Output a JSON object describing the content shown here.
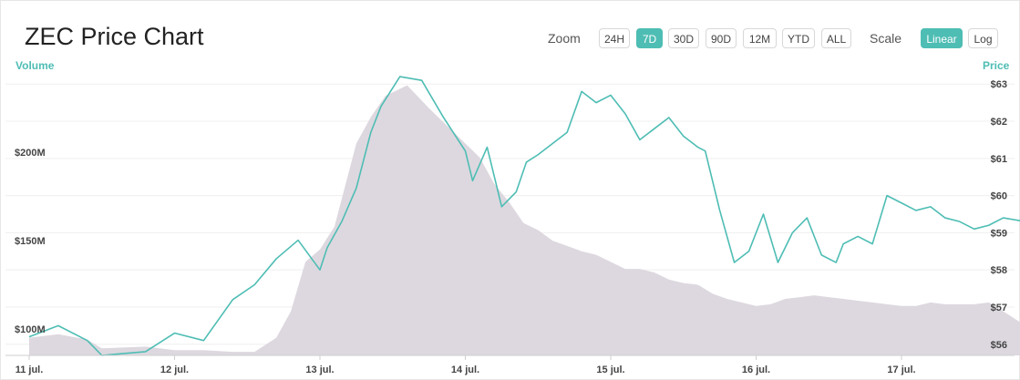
{
  "title": "ZEC Price Chart",
  "zoom": {
    "label": "Zoom",
    "options": [
      "24H",
      "7D",
      "30D",
      "90D",
      "12M",
      "YTD",
      "ALL"
    ],
    "selected": "7D"
  },
  "scale": {
    "label": "Scale",
    "options": [
      "Linear",
      "Log"
    ],
    "selected": "Linear"
  },
  "colors": {
    "price_line": "#4ebdb4",
    "volume_area": "#ddd8df",
    "accent": "#4ebdb4"
  },
  "chart_data": {
    "type": "line",
    "x_labels": [
      "11 jul.",
      "12 jul.",
      "13 jul.",
      "14 jul.",
      "15 jul.",
      "16 jul.",
      "17 jul."
    ],
    "left_axis": {
      "title": "Volume",
      "ticks": [
        "$200M",
        "$150M",
        "$100M"
      ],
      "tick_values": [
        200,
        150,
        100
      ],
      "unit": "M USD"
    },
    "right_axis": {
      "title": "Price",
      "ticks": [
        "$63",
        "$62",
        "$61",
        "$60",
        "$59",
        "$58",
        "$57",
        "$56"
      ],
      "tick_values": [
        63,
        62,
        61,
        60,
        59,
        58,
        57,
        56
      ],
      "unit": "USD"
    },
    "ylim_price": [
      55.7,
      63.3
    ],
    "ylim_volume": [
      85,
      245
    ],
    "grid": "horizontal",
    "series": [
      {
        "name": "Price",
        "x": [
          0.0,
          0.2,
          0.4,
          0.5,
          0.65,
          0.8,
          1.0,
          1.2,
          1.4,
          1.55,
          1.7,
          1.85,
          2.0,
          2.05,
          2.15,
          2.25,
          2.35,
          2.42,
          2.55,
          2.7,
          2.85,
          3.0,
          3.05,
          3.15,
          3.25,
          3.35,
          3.42,
          3.5,
          3.6,
          3.7,
          3.8,
          3.9,
          4.0,
          4.1,
          4.2,
          4.3,
          4.4,
          4.5,
          4.6,
          4.65,
          4.75,
          4.85,
          4.95,
          5.05,
          5.15,
          5.25,
          5.35,
          5.45,
          5.55,
          5.6,
          5.7,
          5.8,
          5.9,
          6.0,
          6.1,
          6.2,
          6.3,
          6.4,
          6.5,
          6.6,
          6.7,
          6.85
        ],
        "values": [
          56.2,
          56.5,
          56.1,
          55.7,
          55.75,
          55.8,
          56.3,
          56.1,
          57.2,
          57.6,
          58.3,
          58.8,
          58.0,
          58.6,
          59.3,
          60.2,
          61.7,
          62.4,
          63.2,
          63.1,
          62.1,
          61.2,
          60.4,
          61.3,
          59.7,
          60.1,
          60.9,
          61.1,
          61.4,
          61.7,
          62.8,
          62.5,
          62.7,
          62.2,
          61.5,
          61.8,
          62.1,
          61.6,
          61.3,
          61.2,
          59.6,
          58.2,
          58.5,
          59.5,
          58.2,
          59.0,
          59.4,
          58.4,
          58.2,
          58.7,
          58.9,
          58.7,
          60.0,
          59.8,
          59.6,
          59.7,
          59.4,
          59.3,
          59.1,
          59.2,
          59.4,
          59.3
        ]
      },
      {
        "name": "Volume",
        "x": [
          0.0,
          0.2,
          0.4,
          0.5,
          0.8,
          1.0,
          1.2,
          1.4,
          1.55,
          1.7,
          1.8,
          1.9,
          2.0,
          2.1,
          2.25,
          2.35,
          2.45,
          2.6,
          2.75,
          2.9,
          3.0,
          3.1,
          3.2,
          3.3,
          3.4,
          3.5,
          3.6,
          3.7,
          3.8,
          3.9,
          4.0,
          4.1,
          4.2,
          4.3,
          4.4,
          4.5,
          4.6,
          4.7,
          4.8,
          4.9,
          5.0,
          5.1,
          5.2,
          5.3,
          5.4,
          5.5,
          5.6,
          5.7,
          5.8,
          5.9,
          6.0,
          6.1,
          6.2,
          6.3,
          6.4,
          6.5,
          6.6,
          6.7,
          6.85
        ],
        "values": [
          95,
          97,
          94,
          89,
          90,
          88,
          88,
          87,
          87,
          95,
          110,
          138,
          145,
          158,
          205,
          220,
          232,
          238,
          225,
          213,
          205,
          197,
          182,
          172,
          160,
          156,
          150,
          147,
          144,
          142,
          138,
          134,
          134,
          132,
          128,
          126,
          125,
          120,
          117,
          115,
          113,
          114,
          117,
          118,
          119,
          118,
          117,
          116,
          115,
          114,
          113,
          113,
          115,
          114,
          114,
          114,
          115,
          110,
          102
        ]
      }
    ]
  }
}
